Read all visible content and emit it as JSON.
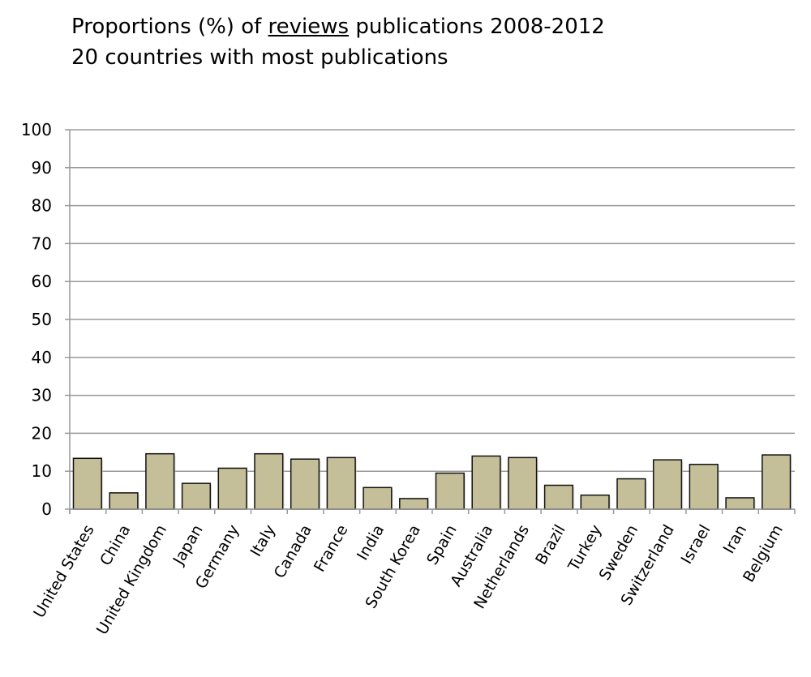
{
  "chart_data": {
    "type": "bar",
    "title_line1_pre": "Proportions (%) of ",
    "title_line1_underlined": "reviews",
    "title_line1_post": " publications 2008-2012",
    "title_line2": "20 countries with most publications",
    "xlabel": "",
    "ylabel": "",
    "ylim": [
      0,
      100
    ],
    "yticks": [
      0,
      10,
      20,
      30,
      40,
      50,
      60,
      70,
      80,
      90,
      100
    ],
    "grid": true,
    "bar_color": "#c4bf98",
    "categories": [
      "United States",
      "China",
      "United Kingdom",
      "Japan",
      "Germany",
      "Italy",
      "Canada",
      "France",
      "India",
      "South Korea",
      "Spain",
      "Australia",
      "Netherlands",
      "Brazil",
      "Turkey",
      "Sweden",
      "Switzerland",
      "Israel",
      "Iran",
      "Belgium"
    ],
    "values": [
      13.4,
      4.3,
      14.6,
      6.8,
      10.8,
      14.6,
      13.2,
      13.6,
      5.7,
      2.8,
      9.5,
      14.0,
      13.6,
      6.3,
      3.7,
      8.0,
      13.0,
      11.8,
      3.0,
      14.3
    ]
  }
}
